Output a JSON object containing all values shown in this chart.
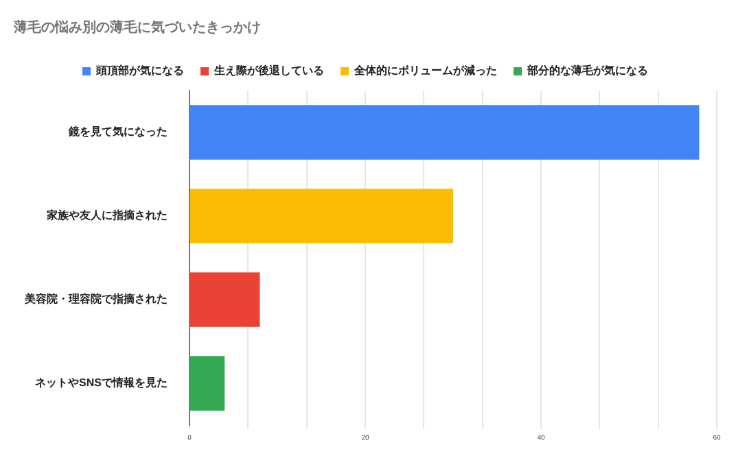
{
  "chart_data": {
    "type": "bar",
    "orientation": "horizontal",
    "stacked": true,
    "title": "薄毛の悩み別の薄毛に気づいたきっかけ",
    "categories": [
      "鏡を見て気になった",
      "家族や友人に指摘された",
      "美容院・理容院で指摘された",
      "ネットやSNSで情報を見た"
    ],
    "series": [
      {
        "name": "頭頂部が気になる",
        "color": "#4285f4",
        "values": [
          58,
          null,
          null,
          null
        ]
      },
      {
        "name": "生え際が後退している",
        "color": "#ea4335",
        "values": [
          null,
          null,
          8,
          null
        ]
      },
      {
        "name": "全体的にボリュームが減った",
        "color": "#fbbc04",
        "values": [
          null,
          30,
          null,
          null
        ]
      },
      {
        "name": "部分的な薄毛が気になる",
        "color": "#34a853",
        "values": [
          null,
          null,
          null,
          4
        ]
      }
    ],
    "xlim": [
      0,
      60
    ],
    "xticks": [
      0,
      {
        "value": 6.67,
        "label": null
      },
      {
        "value": 13.33,
        "label": null
      },
      20,
      {
        "value": 26.67,
        "label": null
      },
      {
        "value": 33.33,
        "label": null
      },
      40,
      {
        "value": 46.67,
        "label": null
      },
      {
        "value": 53.33,
        "label": null
      },
      60
    ],
    "grid": "x",
    "legend": "top"
  }
}
